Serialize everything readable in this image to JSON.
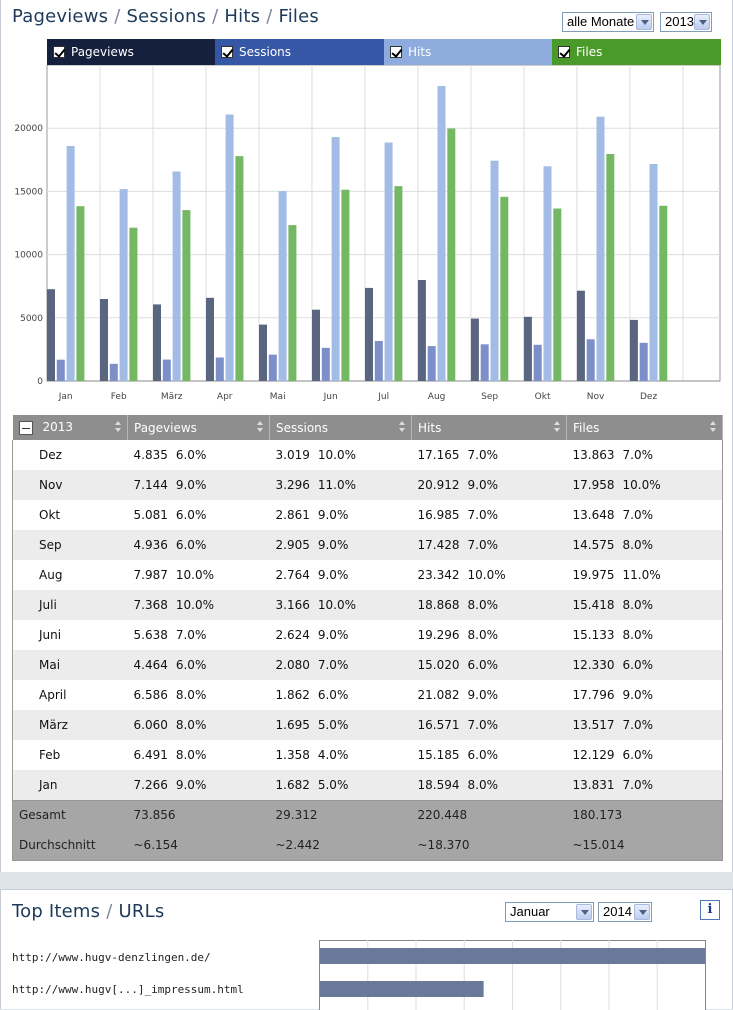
{
  "stats": {
    "title_parts": [
      "Pageviews",
      "Sessions",
      "Hits",
      "Files"
    ],
    "title_separator": "/",
    "month_filter": "alle Monate",
    "year_filter": "2013",
    "legend": [
      {
        "label": "Pageviews",
        "color": "#14203d",
        "checked": true
      },
      {
        "label": "Sessions",
        "color": "#3656a6",
        "checked": true
      },
      {
        "label": "Hits",
        "color": "#8eabde",
        "checked": true
      },
      {
        "label": "Files",
        "color": "#4a9a2a",
        "checked": true
      }
    ]
  },
  "chart_data": {
    "type": "bar",
    "categories": [
      "Jan",
      "Feb",
      "März",
      "Apr",
      "Mai",
      "Jun",
      "Jul",
      "Aug",
      "Sep",
      "Okt",
      "Nov",
      "Dez"
    ],
    "series": [
      {
        "name": "Pageviews",
        "color": "#5a6680",
        "values": [
          7266,
          6491,
          6060,
          6586,
          4464,
          5638,
          7368,
          7987,
          4936,
          5081,
          7144,
          4835
        ]
      },
      {
        "name": "Sessions",
        "color": "#7d8fc9",
        "values": [
          1682,
          1358,
          1695,
          1862,
          2080,
          2624,
          3166,
          2764,
          2905,
          2861,
          3296,
          3019
        ]
      },
      {
        "name": "Hits",
        "color": "#a3bce6",
        "values": [
          18594,
          15185,
          16571,
          21082,
          15020,
          19296,
          18868,
          23342,
          17428,
          16985,
          20912,
          17165
        ]
      },
      {
        "name": "Files",
        "color": "#74b863",
        "values": [
          13831,
          12129,
          13517,
          17796,
          12330,
          15133,
          15418,
          19975,
          14575,
          13648,
          17958,
          13863
        ]
      }
    ],
    "yticks": [
      "0",
      "5000",
      "10000",
      "15000",
      "20000"
    ],
    "ylim": [
      0,
      25000
    ],
    "grid": true
  },
  "table": {
    "headers": [
      "2013",
      "Pageviews",
      "Sessions",
      "Hits",
      "Files"
    ],
    "rows": [
      {
        "month": "Dez",
        "pv": "4.835",
        "pv_pct": "6.0%",
        "se": "3.019",
        "se_pct": "10.0%",
        "hi": "17.165",
        "hi_pct": "7.0%",
        "fi": "13.863",
        "fi_pct": "7.0%"
      },
      {
        "month": "Nov",
        "pv": "7.144",
        "pv_pct": "9.0%",
        "se": "3.296",
        "se_pct": "11.0%",
        "hi": "20.912",
        "hi_pct": "9.0%",
        "fi": "17.958",
        "fi_pct": "10.0%"
      },
      {
        "month": "Okt",
        "pv": "5.081",
        "pv_pct": "6.0%",
        "se": "2.861",
        "se_pct": "9.0%",
        "hi": "16.985",
        "hi_pct": "7.0%",
        "fi": "13.648",
        "fi_pct": "7.0%"
      },
      {
        "month": "Sep",
        "pv": "4.936",
        "pv_pct": "6.0%",
        "se": "2.905",
        "se_pct": "9.0%",
        "hi": "17.428",
        "hi_pct": "7.0%",
        "fi": "14.575",
        "fi_pct": "8.0%"
      },
      {
        "month": "Aug",
        "pv": "7.987",
        "pv_pct": "10.0%",
        "se": "2.764",
        "se_pct": "9.0%",
        "hi": "23.342",
        "hi_pct": "10.0%",
        "fi": "19.975",
        "fi_pct": "11.0%"
      },
      {
        "month": "Juli",
        "pv": "7.368",
        "pv_pct": "10.0%",
        "se": "3.166",
        "se_pct": "10.0%",
        "hi": "18.868",
        "hi_pct": "8.0%",
        "fi": "15.418",
        "fi_pct": "8.0%"
      },
      {
        "month": "Juni",
        "pv": "5.638",
        "pv_pct": "7.0%",
        "se": "2.624",
        "se_pct": "9.0%",
        "hi": "19.296",
        "hi_pct": "8.0%",
        "fi": "15.133",
        "fi_pct": "8.0%"
      },
      {
        "month": "Mai",
        "pv": "4.464",
        "pv_pct": "6.0%",
        "se": "2.080",
        "se_pct": "7.0%",
        "hi": "15.020",
        "hi_pct": "6.0%",
        "fi": "12.330",
        "fi_pct": "6.0%"
      },
      {
        "month": "April",
        "pv": "6.586",
        "pv_pct": "8.0%",
        "se": "1.862",
        "se_pct": "6.0%",
        "hi": "21.082",
        "hi_pct": "9.0%",
        "fi": "17.796",
        "fi_pct": "9.0%"
      },
      {
        "month": "März",
        "pv": "6.060",
        "pv_pct": "8.0%",
        "se": "1.695",
        "se_pct": "5.0%",
        "hi": "16.571",
        "hi_pct": "7.0%",
        "fi": "13.517",
        "fi_pct": "7.0%"
      },
      {
        "month": "Feb",
        "pv": "6.491",
        "pv_pct": "8.0%",
        "se": "1.358",
        "se_pct": "4.0%",
        "hi": "15.185",
        "hi_pct": "6.0%",
        "fi": "12.129",
        "fi_pct": "6.0%"
      },
      {
        "month": "Jan",
        "pv": "7.266",
        "pv_pct": "9.0%",
        "se": "1.682",
        "se_pct": "5.0%",
        "hi": "18.594",
        "hi_pct": "8.0%",
        "fi": "13.831",
        "fi_pct": "7.0%"
      }
    ],
    "total": {
      "label": "Gesamt",
      "pv": "73.856",
      "se": "29.312",
      "hi": "220.448",
      "fi": "180.173"
    },
    "average": {
      "label": "Durchschnitt",
      "pv": "~6.154",
      "se": "~2.442",
      "hi": "~18.370",
      "fi": "~15.014"
    }
  },
  "top_items": {
    "title_parts": [
      "Top Items",
      "URLs"
    ],
    "title_separator": "/",
    "month_filter": "Januar",
    "year_filter": "2014",
    "info_label": "i",
    "urls": [
      {
        "label": "http://www.hugv-denzlingen.de/",
        "share": 1.0
      },
      {
        "label": "http://www.hugv[...]_impressum.html",
        "share": 0.425
      }
    ]
  }
}
